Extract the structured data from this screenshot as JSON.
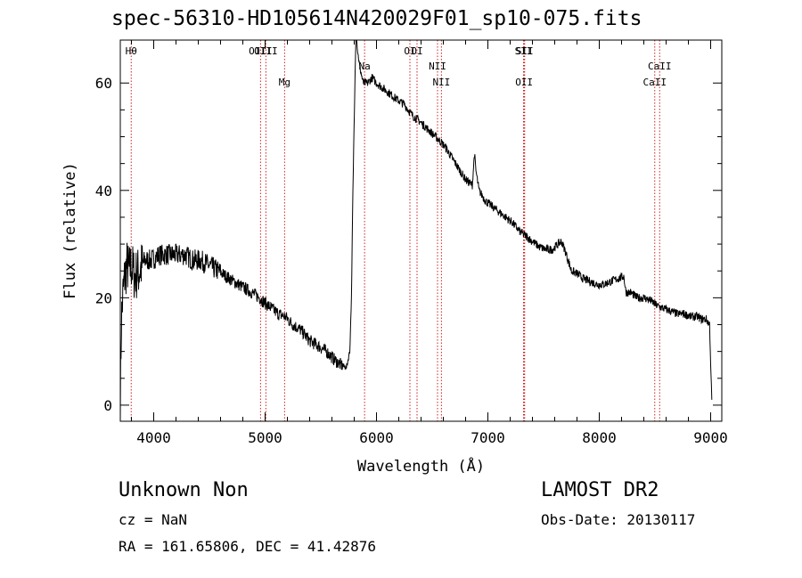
{
  "title": "spec-56310-HD105614N420029F01_sp10-075.fits",
  "info": {
    "name_status": "Unknown    Non",
    "survey": "LAMOST DR2",
    "cz": "cz = NaN",
    "obs_date": "Obs-Date: 20130117",
    "radec": "RA = 161.65806, DEC =  41.42876"
  },
  "chart_data": {
    "type": "line",
    "title": "spec-56310-HD105614N420029F01_sp10-075.fits",
    "xlabel": "Wavelength (Å)",
    "ylabel": "Flux (relative)",
    "xlim": [
      3700,
      9100
    ],
    "ylim": [
      -3,
      68
    ],
    "x_ticks": [
      4000,
      5000,
      6000,
      7000,
      8000,
      9000
    ],
    "y_ticks": [
      0,
      20,
      40,
      60
    ],
    "grid": false,
    "series": [
      {
        "x": [
          3700,
          3710,
          3725,
          3740,
          3760,
          3780,
          3800,
          3830,
          3870,
          3920,
          3980,
          4050,
          4120,
          4200,
          4280,
          4350,
          4420,
          4500,
          4580,
          4650,
          4720,
          4800,
          4880,
          4950,
          5000,
          5060,
          5120,
          5180,
          5250,
          5320,
          5400,
          5480,
          5550,
          5620,
          5680,
          5730,
          5760,
          5775,
          5785,
          5795,
          5805,
          5815,
          5830,
          5850,
          5880,
          5920,
          5960,
          6000,
          6060,
          6120,
          6180,
          6250,
          6320,
          6380,
          6430,
          6480,
          6530,
          6580,
          6620,
          6680,
          6740,
          6800,
          6860,
          6880,
          6890,
          6920,
          6980,
          7040,
          7100,
          7160,
          7220,
          7280,
          7340,
          7400,
          7460,
          7520,
          7580,
          7630,
          7660,
          7690,
          7720,
          7750,
          7800,
          7860,
          7920,
          7980,
          8040,
          8100,
          8160,
          8220,
          8240,
          8280,
          8340,
          8400,
          8460,
          8520,
          8580,
          8640,
          8700,
          8760,
          8820,
          8880,
          8920,
          8960,
          8990,
          9000,
          9010
        ],
        "values": [
          0,
          16,
          21,
          24,
          26,
          25,
          26,
          24,
          25,
          27,
          27,
          28,
          28,
          28,
          28,
          27,
          27,
          26,
          25,
          24,
          23,
          22,
          21,
          20,
          19,
          18,
          17,
          16.5,
          15,
          14,
          12,
          11,
          10,
          8.5,
          7.5,
          7,
          10,
          20,
          35,
          48,
          58,
          70,
          66,
          63,
          60,
          60,
          61,
          60,
          59,
          58,
          57,
          56,
          54,
          53,
          52,
          51,
          50,
          49,
          48,
          46,
          44,
          42,
          41,
          47,
          44,
          40,
          38,
          37,
          36,
          35,
          34,
          32.5,
          31.5,
          30.5,
          29.5,
          29,
          29,
          30,
          30.5,
          29,
          27,
          25,
          24.5,
          23.5,
          23,
          22.5,
          22.5,
          23,
          23.5,
          24,
          21,
          21,
          20,
          20,
          19.5,
          18.5,
          18,
          17.5,
          17,
          17,
          16.5,
          16.5,
          16,
          16,
          15,
          8,
          1
        ]
      }
    ],
    "lines": [
      {
        "label": "Hθ",
        "x": 3798,
        "row": "top"
      },
      {
        "label": "OIII",
        "x": 4959,
        "row": "top"
      },
      {
        "label": "OIII",
        "x": 5007,
        "row": "top"
      },
      {
        "label": "Mg",
        "x": 5175,
        "row": "mid"
      },
      {
        "label": "Na",
        "x": 5893,
        "row": "upper"
      },
      {
        "label": "OI",
        "x": 6300,
        "row": "top"
      },
      {
        "label": "OI",
        "x": 6364,
        "row": "top"
      },
      {
        "label": "NII",
        "x": 6548,
        "row": "upper"
      },
      {
        "label": "NII",
        "x": 6583,
        "row": "mid"
      },
      {
        "label": "OII",
        "x": 7325,
        "row": "mid"
      },
      {
        "label": "SII",
        "x": 7320,
        "row": "top"
      },
      {
        "label": "SII",
        "x": 7330,
        "row": "top"
      },
      {
        "label": "CaII",
        "x": 8498,
        "row": "mid"
      },
      {
        "label": "CaII",
        "x": 8542,
        "row": "upper"
      }
    ],
    "line_color": "#cc2222",
    "series_color": "#000000"
  }
}
